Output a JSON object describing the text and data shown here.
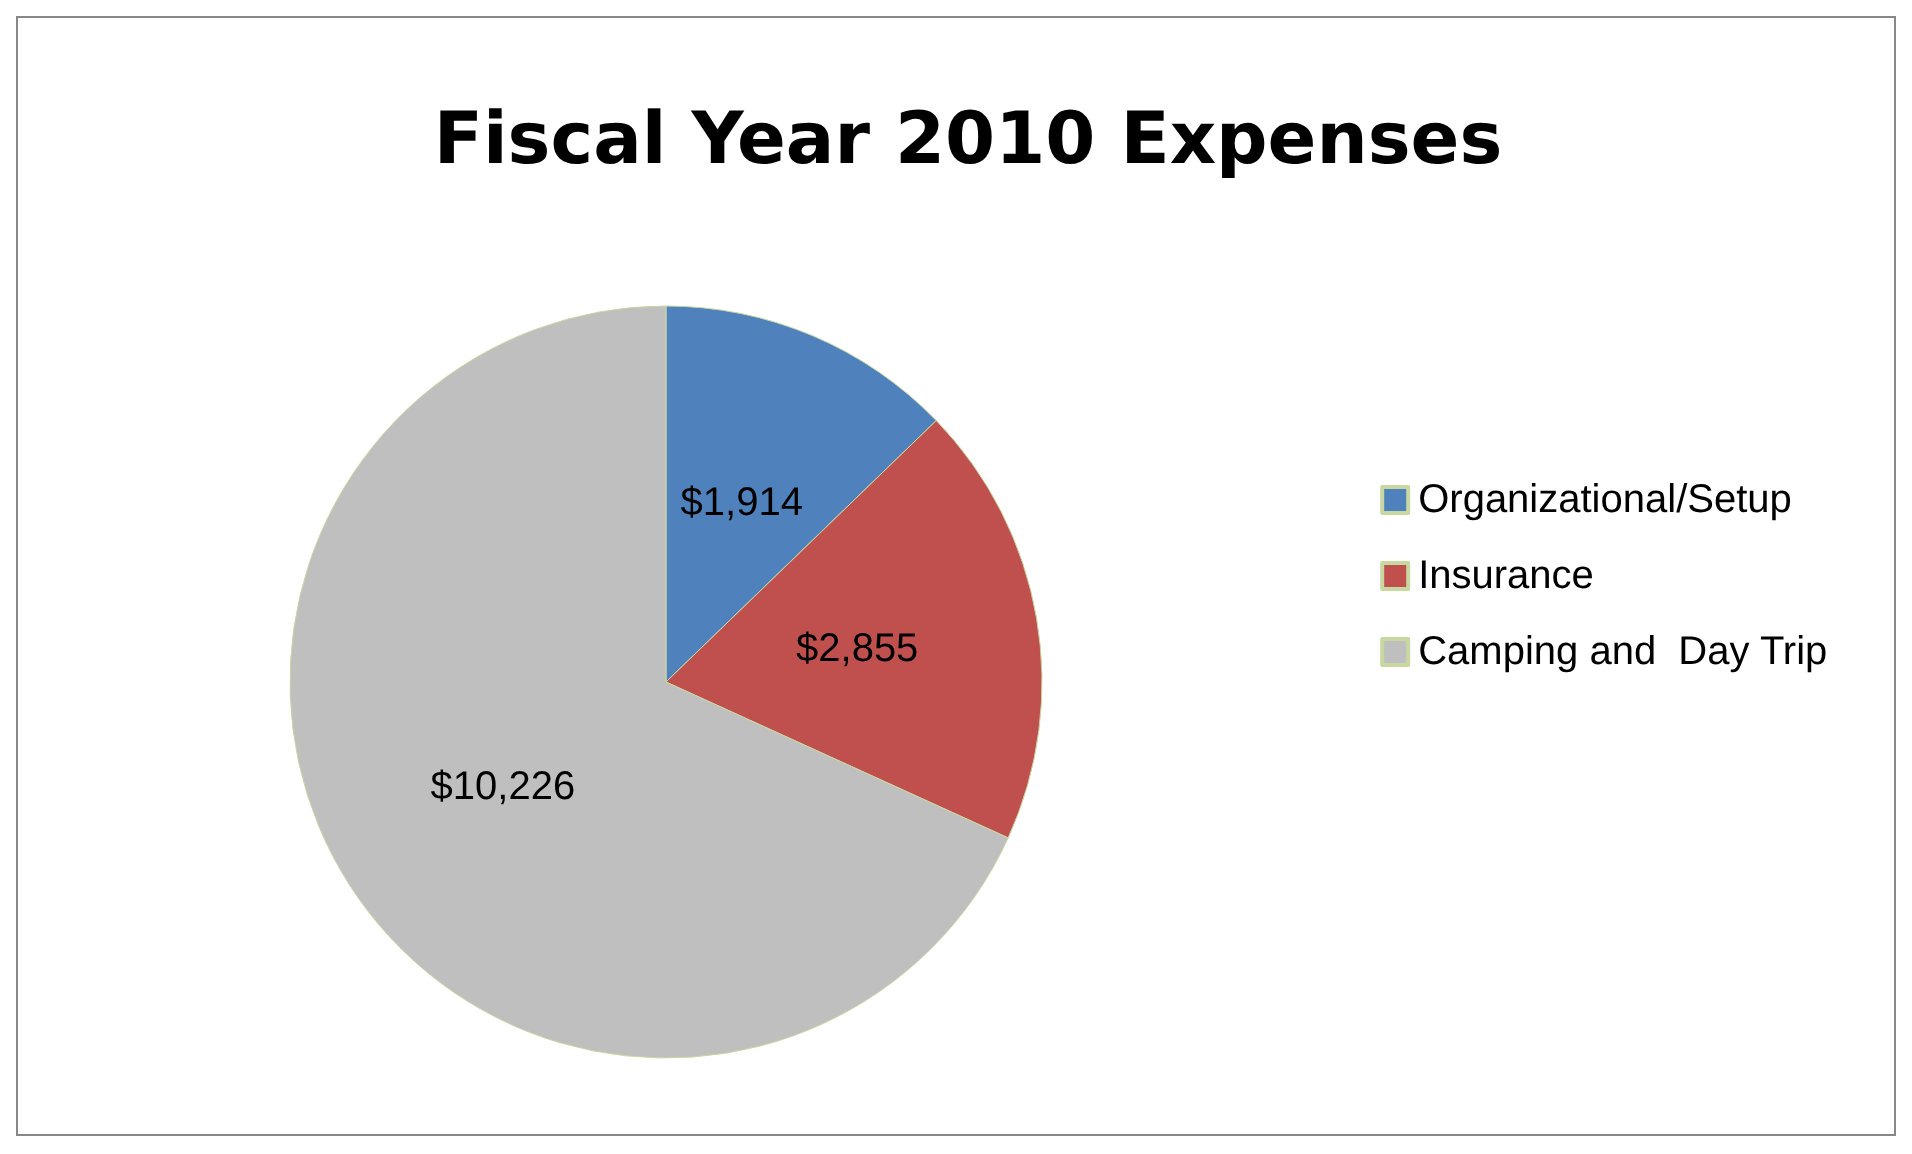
{
  "chart_data": {
    "type": "pie",
    "title": "Fiscal Year 2010 Expenses",
    "categories": [
      "Organizational/Setup",
      "Insurance",
      "Camping and  Day Trip"
    ],
    "values": [
      1914,
      2855,
      10226
    ],
    "colors": [
      "#4f81bd",
      "#c0504d",
      "#bfbfbf"
    ],
    "value_labels": [
      "$1,914",
      "$2,855",
      "$10,226"
    ],
    "legend": "right"
  }
}
